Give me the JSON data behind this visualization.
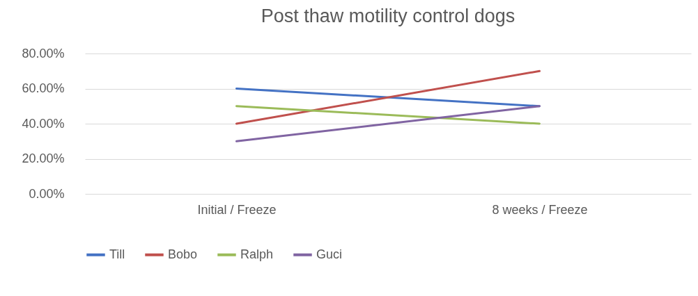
{
  "chart_data": {
    "type": "line",
    "title": "Post thaw motility control dogs",
    "categories": [
      "Initial / Freeze",
      "8 weeks / Freeze"
    ],
    "series": [
      {
        "name": "Till",
        "color": "#4472c4",
        "values": [
          60,
          50
        ]
      },
      {
        "name": "Bobo",
        "color": "#c0504d",
        "values": [
          40,
          70
        ]
      },
      {
        "name": "Ralph",
        "color": "#9bbb59",
        "values": [
          50,
          40
        ]
      },
      {
        "name": "Guci",
        "color": "#8064a2",
        "values": [
          30,
          50
        ]
      }
    ],
    "ylim": [
      0,
      80
    ],
    "yticks": [
      {
        "value": 0,
        "label": "0.00%"
      },
      {
        "value": 20,
        "label": "20.00%"
      },
      {
        "value": 40,
        "label": "40.00%"
      },
      {
        "value": 60,
        "label": "60.00%"
      },
      {
        "value": 80,
        "label": "80.00%"
      }
    ],
    "grid": "y",
    "legend": "bottom",
    "marker": "none",
    "line_style": "solid"
  }
}
